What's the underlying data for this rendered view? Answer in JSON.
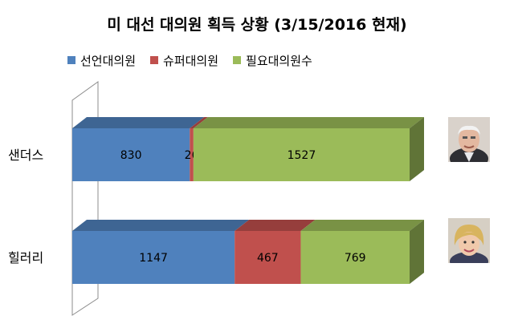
{
  "chart_data": {
    "type": "bar",
    "orientation": "horizontal",
    "stacked": true,
    "style": "3d",
    "title": "미 대선 대의원 획득 상황 (3/15/2016 현재)",
    "categories": [
      "샌더스",
      "힐러리"
    ],
    "series": [
      {
        "name": "선언대의원",
        "color": "#4f81bd",
        "values": [
          830,
          1147
        ]
      },
      {
        "name": "슈퍼대의원",
        "color": "#c0504d",
        "values": [
          26,
          467
        ]
      },
      {
        "name": "필요대의원수",
        "color": "#9bbb59",
        "values": [
          1527,
          769
        ]
      }
    ],
    "xlim": [
      0,
      2383
    ],
    "legend": "top",
    "grid": false
  },
  "photos": [
    {
      "category": "샌더스",
      "icon": "person-photo-sanders"
    },
    {
      "category": "힐러리",
      "icon": "person-photo-clinton"
    }
  ]
}
